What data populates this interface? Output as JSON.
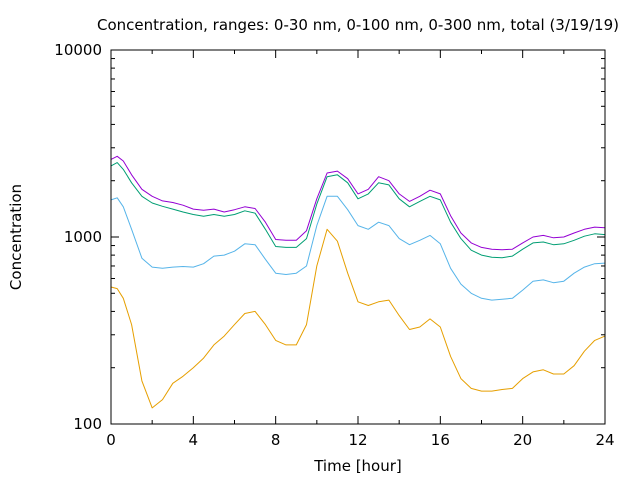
{
  "chart_data": {
    "type": "line",
    "title": "Concentration, ranges: 0-30 nm, 0-100 nm, 0-300 nm, total (3/19/19)",
    "xlabel": "Time [hour]",
    "ylabel": "Concentration",
    "xlim": [
      0,
      24
    ],
    "ylim": [
      100,
      10000
    ],
    "yscale": "log",
    "xticks": [
      0,
      4,
      8,
      12,
      16,
      20,
      24
    ],
    "xtick_labels": [
      "0",
      "4",
      "8",
      "12",
      "16",
      "20",
      "24"
    ],
    "yticks": [
      100,
      1000,
      10000
    ],
    "ytick_labels": [
      "100",
      "1000",
      "10000"
    ],
    "grid": false,
    "legend": "none",
    "series": [
      {
        "color": "#9400d3",
        "points": [
          [
            0,
            2600
          ],
          [
            0.3,
            2700
          ],
          [
            0.6,
            2550
          ],
          [
            1,
            2150
          ],
          [
            1.5,
            1800
          ],
          [
            2,
            1650
          ],
          [
            2.5,
            1560
          ],
          [
            3,
            1530
          ],
          [
            3.5,
            1480
          ],
          [
            4,
            1410
          ],
          [
            4.5,
            1390
          ],
          [
            5,
            1410
          ],
          [
            5.5,
            1360
          ],
          [
            6,
            1400
          ],
          [
            6.5,
            1450
          ],
          [
            7,
            1420
          ],
          [
            7.5,
            1200
          ],
          [
            8,
            970
          ],
          [
            8.5,
            960
          ],
          [
            9,
            960
          ],
          [
            9.5,
            1080
          ],
          [
            10,
            1600
          ],
          [
            10.5,
            2200
          ],
          [
            11,
            2250
          ],
          [
            11.5,
            2050
          ],
          [
            12,
            1700
          ],
          [
            12.5,
            1800
          ],
          [
            13,
            2100
          ],
          [
            13.5,
            2000
          ],
          [
            14,
            1700
          ],
          [
            14.5,
            1550
          ],
          [
            15,
            1650
          ],
          [
            15.5,
            1780
          ],
          [
            16,
            1700
          ],
          [
            16.5,
            1300
          ],
          [
            17,
            1050
          ],
          [
            17.5,
            930
          ],
          [
            18,
            880
          ],
          [
            18.5,
            860
          ],
          [
            19,
            855
          ],
          [
            19.5,
            860
          ],
          [
            20,
            930
          ],
          [
            20.5,
            1000
          ],
          [
            21,
            1020
          ],
          [
            21.5,
            990
          ],
          [
            22,
            1000
          ],
          [
            22.5,
            1050
          ],
          [
            23,
            1100
          ],
          [
            23.5,
            1130
          ],
          [
            24,
            1120
          ]
        ]
      },
      {
        "color": "#009e73",
        "points": [
          [
            0,
            2400
          ],
          [
            0.3,
            2500
          ],
          [
            0.6,
            2300
          ],
          [
            1,
            1950
          ],
          [
            1.5,
            1650
          ],
          [
            2,
            1520
          ],
          [
            2.5,
            1460
          ],
          [
            3,
            1410
          ],
          [
            3.5,
            1360
          ],
          [
            4,
            1320
          ],
          [
            4.5,
            1290
          ],
          [
            5,
            1320
          ],
          [
            5.5,
            1290
          ],
          [
            6,
            1320
          ],
          [
            6.5,
            1380
          ],
          [
            7,
            1340
          ],
          [
            7.5,
            1100
          ],
          [
            8,
            890
          ],
          [
            8.5,
            880
          ],
          [
            9,
            880
          ],
          [
            9.5,
            980
          ],
          [
            10,
            1500
          ],
          [
            10.5,
            2100
          ],
          [
            11,
            2150
          ],
          [
            11.5,
            1950
          ],
          [
            12,
            1600
          ],
          [
            12.5,
            1700
          ],
          [
            13,
            1950
          ],
          [
            13.5,
            1900
          ],
          [
            14,
            1600
          ],
          [
            14.5,
            1450
          ],
          [
            15,
            1550
          ],
          [
            15.5,
            1650
          ],
          [
            16,
            1580
          ],
          [
            16.5,
            1200
          ],
          [
            17,
            980
          ],
          [
            17.5,
            850
          ],
          [
            18,
            800
          ],
          [
            18.5,
            780
          ],
          [
            19,
            775
          ],
          [
            19.5,
            790
          ],
          [
            20,
            860
          ],
          [
            20.5,
            930
          ],
          [
            21,
            940
          ],
          [
            21.5,
            910
          ],
          [
            22,
            920
          ],
          [
            22.5,
            960
          ],
          [
            23,
            1010
          ],
          [
            23.5,
            1040
          ],
          [
            24,
            1030
          ]
        ]
      },
      {
        "color": "#56b4e9",
        "points": [
          [
            0,
            1580
          ],
          [
            0.3,
            1620
          ],
          [
            0.6,
            1450
          ],
          [
            1,
            1100
          ],
          [
            1.5,
            770
          ],
          [
            2,
            690
          ],
          [
            2.5,
            680
          ],
          [
            3,
            690
          ],
          [
            3.5,
            695
          ],
          [
            4,
            690
          ],
          [
            4.5,
            720
          ],
          [
            5,
            790
          ],
          [
            5.5,
            800
          ],
          [
            6,
            840
          ],
          [
            6.5,
            920
          ],
          [
            7,
            910
          ],
          [
            7.5,
            760
          ],
          [
            8,
            640
          ],
          [
            8.5,
            630
          ],
          [
            9,
            640
          ],
          [
            9.5,
            700
          ],
          [
            10,
            1150
          ],
          [
            10.5,
            1650
          ],
          [
            11,
            1650
          ],
          [
            11.5,
            1400
          ],
          [
            12,
            1150
          ],
          [
            12.5,
            1100
          ],
          [
            13,
            1200
          ],
          [
            13.5,
            1150
          ],
          [
            14,
            980
          ],
          [
            14.5,
            910
          ],
          [
            15,
            960
          ],
          [
            15.5,
            1020
          ],
          [
            16,
            920
          ],
          [
            16.5,
            680
          ],
          [
            17,
            560
          ],
          [
            17.5,
            500
          ],
          [
            18,
            470
          ],
          [
            18.5,
            460
          ],
          [
            19,
            465
          ],
          [
            19.5,
            470
          ],
          [
            20,
            520
          ],
          [
            20.5,
            580
          ],
          [
            21,
            590
          ],
          [
            21.5,
            570
          ],
          [
            22,
            580
          ],
          [
            22.5,
            640
          ],
          [
            23,
            690
          ],
          [
            23.5,
            720
          ],
          [
            24,
            725
          ]
        ]
      },
      {
        "color": "#e69f00",
        "points": [
          [
            0,
            540
          ],
          [
            0.3,
            530
          ],
          [
            0.6,
            470
          ],
          [
            1,
            340
          ],
          [
            1.5,
            170
          ],
          [
            2,
            122
          ],
          [
            2.5,
            135
          ],
          [
            3,
            165
          ],
          [
            3.5,
            180
          ],
          [
            4,
            200
          ],
          [
            4.5,
            225
          ],
          [
            5,
            265
          ],
          [
            5.5,
            295
          ],
          [
            6,
            340
          ],
          [
            6.5,
            390
          ],
          [
            7,
            400
          ],
          [
            7.5,
            340
          ],
          [
            8,
            280
          ],
          [
            8.5,
            265
          ],
          [
            9,
            265
          ],
          [
            9.5,
            340
          ],
          [
            10,
            700
          ],
          [
            10.5,
            1100
          ],
          [
            11,
            950
          ],
          [
            11.5,
            640
          ],
          [
            12,
            450
          ],
          [
            12.5,
            430
          ],
          [
            13,
            450
          ],
          [
            13.5,
            460
          ],
          [
            14,
            380
          ],
          [
            14.5,
            320
          ],
          [
            15,
            330
          ],
          [
            15.5,
            365
          ],
          [
            16,
            330
          ],
          [
            16.5,
            230
          ],
          [
            17,
            175
          ],
          [
            17.5,
            155
          ],
          [
            18,
            150
          ],
          [
            18.5,
            150
          ],
          [
            19,
            153
          ],
          [
            19.5,
            155
          ],
          [
            20,
            175
          ],
          [
            20.5,
            190
          ],
          [
            21,
            195
          ],
          [
            21.5,
            185
          ],
          [
            22,
            185
          ],
          [
            22.5,
            205
          ],
          [
            23,
            245
          ],
          [
            23.5,
            280
          ],
          [
            24,
            295
          ]
        ]
      }
    ]
  }
}
